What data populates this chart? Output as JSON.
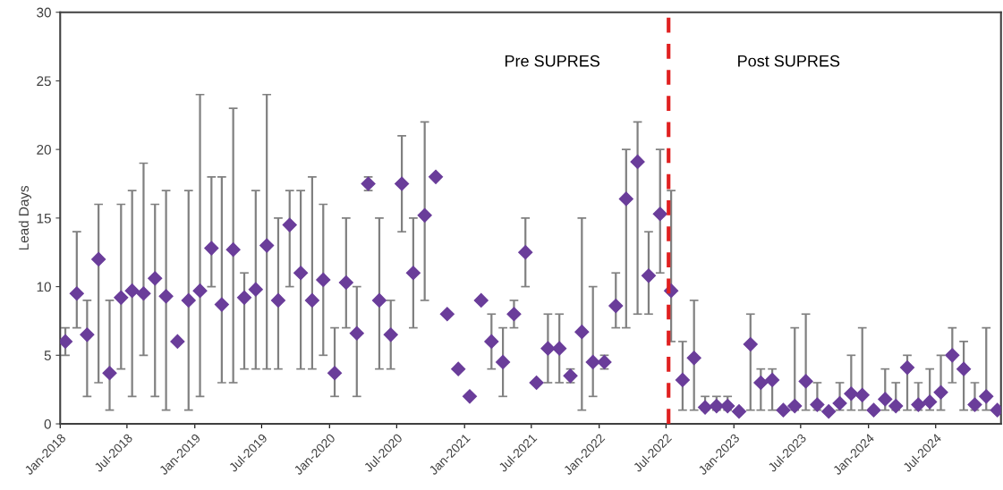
{
  "chart_data": {
    "type": "scatter",
    "ylabel": "Lead Days",
    "x": [
      "2018-01-15",
      "2018-02-15",
      "2018-03-15",
      "2018-04-15",
      "2018-05-15",
      "2018-06-15",
      "2018-07-15",
      "2018-08-15",
      "2018-09-15",
      "2018-10-15",
      "2018-11-15",
      "2018-12-15",
      "2019-01-15",
      "2019-02-15",
      "2019-03-15",
      "2019-04-15",
      "2019-05-15",
      "2019-06-15",
      "2019-07-15",
      "2019-08-15",
      "2019-09-15",
      "2019-10-15",
      "2019-11-15",
      "2019-12-15",
      "2020-01-15",
      "2020-02-15",
      "2020-03-15",
      "2020-04-15",
      "2020-05-15",
      "2020-06-15",
      "2020-07-15",
      "2020-08-15",
      "2020-09-15",
      "2020-10-15",
      "2020-11-15",
      "2020-12-15",
      "2021-01-15",
      "2021-02-15",
      "2021-03-15",
      "2021-04-15",
      "2021-05-15",
      "2021-06-15",
      "2021-07-15",
      "2021-08-15",
      "2021-09-15",
      "2021-10-15",
      "2021-11-15",
      "2021-12-15",
      "2022-01-15",
      "2022-02-15",
      "2022-03-15",
      "2022-04-15",
      "2022-05-15",
      "2022-06-15",
      "2022-07-15",
      "2022-08-15",
      "2022-09-15",
      "2022-10-15",
      "2022-11-15",
      "2022-12-15",
      "2023-01-15",
      "2023-02-15",
      "2023-03-15",
      "2023-04-15",
      "2023-05-15",
      "2023-06-15",
      "2023-07-15",
      "2023-08-15",
      "2023-09-15",
      "2023-10-15",
      "2023-11-15",
      "2023-12-15",
      "2024-01-15",
      "2024-02-15",
      "2024-03-15",
      "2024-04-15",
      "2024-05-15",
      "2024-06-15",
      "2024-07-15",
      "2024-08-15",
      "2024-09-15",
      "2024-10-15",
      "2024-11-15",
      "2024-12-15"
    ],
    "series": [
      {
        "color": "#6a3d9a",
        "values": [
          6,
          9.5,
          6.5,
          12,
          3.7,
          9.2,
          9.7,
          9.5,
          10.6,
          9.3,
          6,
          9,
          9.7,
          12.8,
          8.7,
          12.7,
          9.2,
          9.8,
          13,
          9,
          14.5,
          11,
          9,
          10.5,
          3.7,
          10.3,
          6.6,
          17.5,
          9,
          6.5,
          17.5,
          11,
          15.2,
          18,
          8,
          4,
          2,
          9,
          6,
          4.5,
          8,
          12.5,
          3,
          5.5,
          5.5,
          3.5,
          6.7,
          4.5,
          4.5,
          8.6,
          16.4,
          19.1,
          10.8,
          15.3,
          9.7,
          3.2,
          4.8,
          1.2,
          1.3,
          1.3,
          0.9,
          5.8,
          3,
          3.2,
          1,
          1.3,
          3.1,
          1.4,
          0.9,
          1.5,
          2.2,
          2.1,
          1,
          1.8,
          1.3,
          4.1,
          1.4,
          1.6,
          2.3,
          5,
          4,
          1.4,
          2,
          1
        ],
        "errors": [
          [
            5,
            7
          ],
          [
            7,
            14
          ],
          [
            2,
            9
          ],
          [
            3,
            16
          ],
          [
            1,
            9
          ],
          [
            4,
            16
          ],
          [
            2,
            17
          ],
          [
            5,
            19
          ],
          [
            2,
            16
          ],
          [
            1,
            17
          ],
          null,
          [
            1,
            17
          ],
          [
            2,
            24
          ],
          [
            10,
            18
          ],
          [
            3,
            18
          ],
          [
            3,
            23
          ],
          [
            4,
            11
          ],
          [
            4,
            17
          ],
          [
            4,
            24
          ],
          [
            4,
            15
          ],
          [
            10,
            17
          ],
          [
            4,
            17
          ],
          [
            4,
            18
          ],
          [
            5,
            16
          ],
          [
            2,
            7
          ],
          [
            7,
            15
          ],
          [
            2,
            10
          ],
          [
            17,
            18
          ],
          [
            4,
            15
          ],
          [
            4,
            9
          ],
          [
            14,
            21
          ],
          [
            7,
            15
          ],
          [
            9,
            22
          ],
          null,
          null,
          null,
          null,
          null,
          [
            4,
            8
          ],
          [
            2,
            7
          ],
          [
            7,
            9
          ],
          [
            10,
            15
          ],
          null,
          [
            3,
            8
          ],
          [
            3,
            8
          ],
          [
            3,
            4
          ],
          [
            1,
            15
          ],
          [
            2,
            10
          ],
          [
            4,
            5
          ],
          [
            7,
            11
          ],
          [
            7,
            20
          ],
          [
            8,
            22
          ],
          [
            8,
            14
          ],
          [
            11,
            20
          ],
          [
            6,
            17
          ],
          [
            1,
            6
          ],
          [
            1,
            9
          ],
          [
            1,
            2
          ],
          [
            1,
            2
          ],
          [
            1,
            2
          ],
          null,
          [
            1,
            8
          ],
          [
            1,
            4
          ],
          [
            1,
            4
          ],
          null,
          [
            1,
            7
          ],
          [
            1,
            8
          ],
          [
            1,
            3
          ],
          null,
          [
            1,
            3
          ],
          [
            1,
            5
          ],
          [
            1,
            7
          ],
          null,
          [
            1,
            4
          ],
          [
            1,
            3
          ],
          [
            1,
            5
          ],
          [
            1,
            3
          ],
          [
            1,
            4
          ],
          [
            1,
            5
          ],
          [
            3,
            7
          ],
          [
            1,
            6
          ],
          [
            1,
            3
          ],
          [
            1,
            7
          ],
          null
        ]
      }
    ],
    "marker": "diamond",
    "xlim": [
      "2018-01-01",
      "2024-12-25"
    ],
    "xticks": [
      {
        "value": "2018-01-01",
        "label": "Jan-2018"
      },
      {
        "value": "2018-07-01",
        "label": "Jul-2018"
      },
      {
        "value": "2019-01-01",
        "label": "Jan-2019"
      },
      {
        "value": "2019-07-01",
        "label": "Jul-2019"
      },
      {
        "value": "2020-01-01",
        "label": "Jan-2020"
      },
      {
        "value": "2020-07-01",
        "label": "Jul-2020"
      },
      {
        "value": "2021-01-01",
        "label": "Jan-2021"
      },
      {
        "value": "2021-07-01",
        "label": "Jul-2021"
      },
      {
        "value": "2022-01-01",
        "label": "Jan-2022"
      },
      {
        "value": "2022-07-01",
        "label": "Jul-2022"
      },
      {
        "value": "2023-01-01",
        "label": "Jan-2023"
      },
      {
        "value": "2023-07-01",
        "label": "Jul-2023"
      },
      {
        "value": "2024-01-01",
        "label": "Jan-2024"
      },
      {
        "value": "2024-07-01",
        "label": "Jul-2024"
      }
    ],
    "ylim": [
      0,
      30
    ],
    "yticks": [
      0,
      5,
      10,
      15,
      20,
      25,
      30
    ],
    "grid": false,
    "legend": false,
    "ref_lines": [
      {
        "axis": "x",
        "value": "2022-07-08",
        "color": "#e02020",
        "line_style": "dashed"
      }
    ],
    "annotations": [
      "Pre SUPRES",
      "Post SUPRES"
    ]
  }
}
